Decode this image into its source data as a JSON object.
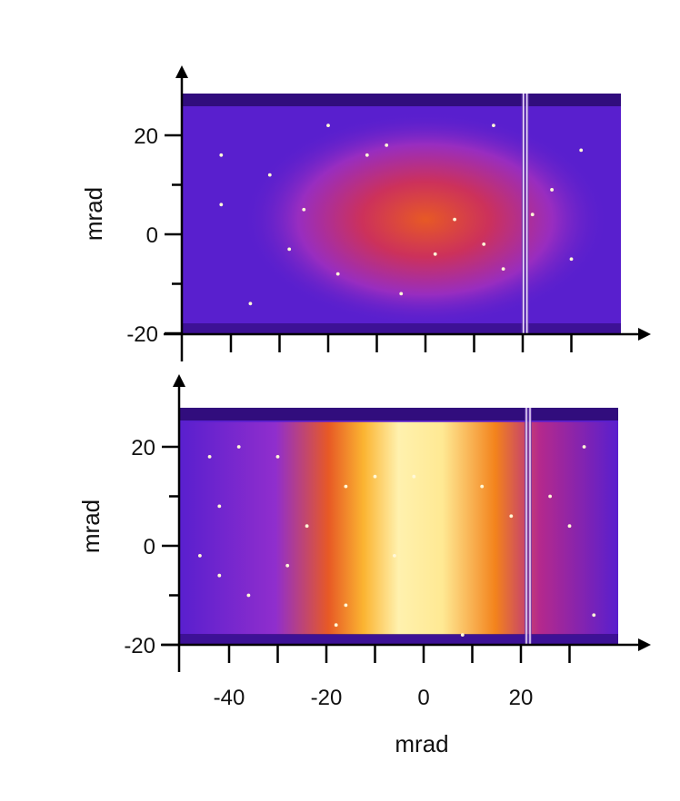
{
  "chart_data": [
    {
      "type": "heatmap",
      "panel": "top",
      "title": "",
      "xlabel": "",
      "ylabel": "mrad",
      "xlim": [
        -50,
        40
      ],
      "ylim": [
        -20,
        28
      ],
      "x_ticks_labeled": [],
      "y_ticks": [
        -20,
        0,
        20
      ],
      "y_tick_labels": [
        "-20",
        "0",
        "20"
      ],
      "colormap": [
        "#2a0a6e",
        "#5a1fd0",
        "#8b2fd6",
        "#c0287a",
        "#e0402a",
        "#f58a1a",
        "#ffd040",
        "#fff6c0"
      ],
      "description_of_intensity": "centered blob",
      "blob": {
        "x_center": 0,
        "y_center": 3,
        "x_width": 22,
        "y_width": 14,
        "peak": 0.62
      },
      "stripe_x": 20.5,
      "hot_spots": [
        [
          -42,
          16
        ],
        [
          -32,
          12
        ],
        [
          -25,
          5
        ],
        [
          -12,
          16
        ],
        [
          -18,
          -8
        ],
        [
          -8,
          18
        ],
        [
          6,
          3
        ],
        [
          12,
          -2
        ],
        [
          26,
          9
        ],
        [
          -36,
          -14
        ],
        [
          -28,
          -3
        ],
        [
          2,
          -4
        ],
        [
          -5,
          -12
        ],
        [
          16,
          -7
        ],
        [
          22,
          4
        ],
        [
          -42,
          6
        ],
        [
          30,
          -5
        ],
        [
          32,
          17
        ],
        [
          -20,
          22
        ],
        [
          14,
          22
        ]
      ]
    },
    {
      "type": "heatmap",
      "panel": "bottom",
      "title": "",
      "xlabel": "mrad",
      "ylabel": "mrad",
      "xlim": [
        -50,
        40
      ],
      "ylim": [
        -20,
        28
      ],
      "x_ticks": [
        -40,
        -20,
        0,
        20
      ],
      "x_tick_labels": [
        "-40",
        "-20",
        "0",
        "20"
      ],
      "y_ticks": [
        -20,
        0,
        20
      ],
      "y_tick_labels": [
        "-20",
        "0",
        "20"
      ],
      "colormap": [
        "#2a0a6e",
        "#5a1fd0",
        "#8b2fd6",
        "#c0287a",
        "#e0402a",
        "#f58a1a",
        "#ffd040",
        "#fff6c0"
      ],
      "description_of_intensity": "vertical band",
      "band": {
        "x_center": 3,
        "x_width": 30,
        "y_min": -18,
        "y_max": 25,
        "peak": 1.0
      },
      "stripe_x": 21.5,
      "hot_spots": [
        [
          -44,
          18
        ],
        [
          -38,
          20
        ],
        [
          -42,
          8
        ],
        [
          -30,
          18
        ],
        [
          -24,
          4
        ],
        [
          -42,
          -6
        ],
        [
          -36,
          -10
        ],
        [
          -16,
          12
        ],
        [
          -10,
          14
        ],
        [
          -6,
          -2
        ],
        [
          -2,
          14
        ],
        [
          12,
          12
        ],
        [
          -16,
          -12
        ],
        [
          -18,
          -16
        ],
        [
          30,
          4
        ],
        [
          35,
          -14
        ],
        [
          33,
          20
        ],
        [
          26,
          10
        ],
        [
          -46,
          -2
        ],
        [
          -28,
          -4
        ],
        [
          8,
          -18
        ],
        [
          18,
          6
        ]
      ]
    }
  ]
}
